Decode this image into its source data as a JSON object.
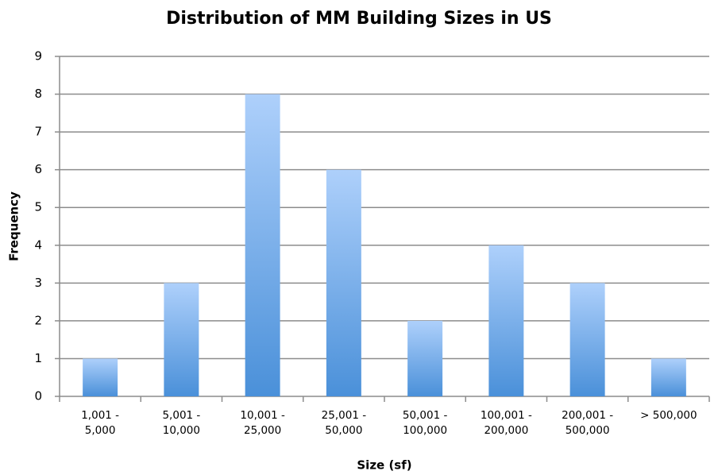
{
  "chart_data": {
    "type": "bar",
    "title": "Distribution of MM Building Sizes in US",
    "x_label": "Size (sf)",
    "y_label": "Frequency",
    "categories": [
      "1,001 -\n5,000",
      "5,001 -\n10,000",
      "10,001 -\n25,000",
      "25,001 -\n50,000",
      "50,001 -\n100,000",
      "100,001 -\n200,000",
      "200,001 -\n500,000",
      "> 500,000"
    ],
    "values": [
      1,
      3,
      8,
      6,
      2,
      4,
      3,
      1
    ],
    "color": "#4a90d9",
    "ylim": [
      0,
      9
    ],
    "yticks": [
      0,
      1,
      2,
      3,
      4,
      5,
      6,
      7,
      8,
      9
    ],
    "grid": true
  }
}
